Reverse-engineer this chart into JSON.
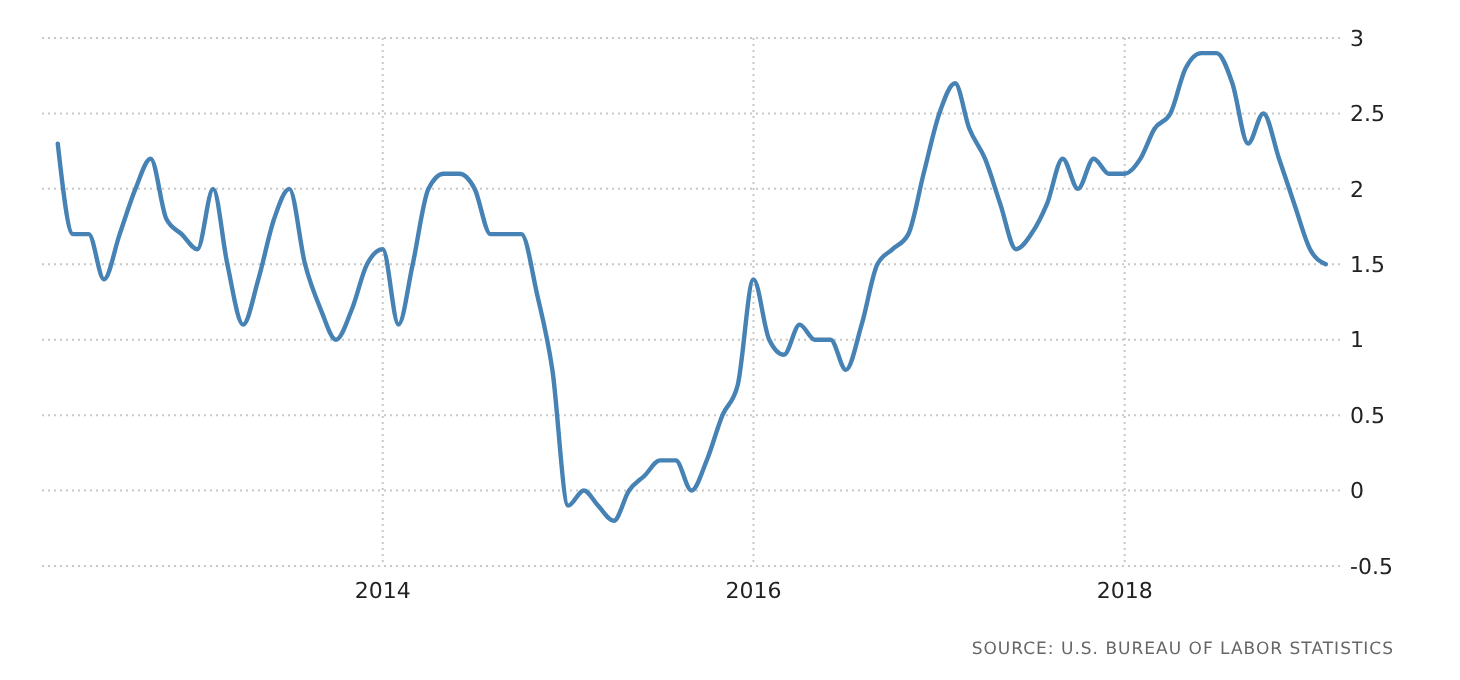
{
  "chart_data": {
    "type": "line",
    "x": [
      "2012-04",
      "2012-05",
      "2012-06",
      "2012-07",
      "2012-08",
      "2012-09",
      "2012-10",
      "2012-11",
      "2012-12",
      "2013-01",
      "2013-02",
      "2013-03",
      "2013-04",
      "2013-05",
      "2013-06",
      "2013-07",
      "2013-08",
      "2013-09",
      "2013-10",
      "2013-11",
      "2013-12",
      "2014-01",
      "2014-02",
      "2014-03",
      "2014-04",
      "2014-05",
      "2014-06",
      "2014-07",
      "2014-08",
      "2014-09",
      "2014-10",
      "2014-11",
      "2014-12",
      "2015-01",
      "2015-02",
      "2015-03",
      "2015-04",
      "2015-05",
      "2015-06",
      "2015-07",
      "2015-08",
      "2015-09",
      "2015-10",
      "2015-11",
      "2015-12",
      "2016-01",
      "2016-02",
      "2016-03",
      "2016-04",
      "2016-05",
      "2016-06",
      "2016-07",
      "2016-08",
      "2016-09",
      "2016-10",
      "2016-11",
      "2016-12",
      "2017-01",
      "2017-02",
      "2017-03",
      "2017-04",
      "2017-05",
      "2017-06",
      "2017-07",
      "2017-08",
      "2017-09",
      "2017-10",
      "2017-11",
      "2017-12",
      "2018-01",
      "2018-02",
      "2018-03",
      "2018-04",
      "2018-05",
      "2018-06",
      "2018-07",
      "2018-08",
      "2018-09",
      "2018-10",
      "2018-11",
      "2018-12",
      "2019-01",
      "2019-02"
    ],
    "series": [
      {
        "color": "#4682b4",
        "values": [
          2.3,
          1.7,
          1.7,
          1.4,
          1.7,
          2.0,
          2.2,
          1.8,
          1.7,
          1.6,
          2.0,
          1.5,
          1.1,
          1.4,
          1.8,
          2.0,
          1.5,
          1.2,
          1.0,
          1.2,
          1.5,
          1.6,
          1.1,
          1.5,
          2.0,
          2.1,
          2.1,
          2.0,
          1.7,
          1.7,
          1.7,
          1.3,
          0.8,
          -0.1,
          0.0,
          -0.1,
          -0.2,
          0.0,
          0.1,
          0.2,
          0.2,
          0.0,
          0.2,
          0.5,
          0.7,
          1.4,
          1.0,
          0.9,
          1.1,
          1.0,
          1.0,
          0.8,
          1.1,
          1.5,
          1.6,
          1.7,
          2.1,
          2.5,
          2.7,
          2.4,
          2.2,
          1.9,
          1.6,
          1.7,
          1.9,
          2.2,
          2.0,
          2.2,
          2.1,
          2.1,
          2.2,
          2.4,
          2.5,
          2.8,
          2.9,
          2.9,
          2.7,
          2.3,
          2.5,
          2.2,
          1.9,
          1.6,
          1.5
        ]
      }
    ],
    "xlim": [
      "2012-03",
      "2019-03"
    ],
    "xticks": [
      {
        "value": "2014",
        "label": "2014"
      },
      {
        "value": "2016",
        "label": "2016"
      },
      {
        "value": "2018",
        "label": "2018"
      }
    ],
    "ylim": [
      -0.5,
      3
    ],
    "yticks": [
      -0.5,
      0,
      0.5,
      1,
      1.5,
      2,
      2.5,
      3
    ],
    "grid": true,
    "line_style": "solid",
    "marker": "none",
    "annotations": [
      "SOURCE: U.S. BUREAU OF LABOR STATISTICS"
    ]
  }
}
